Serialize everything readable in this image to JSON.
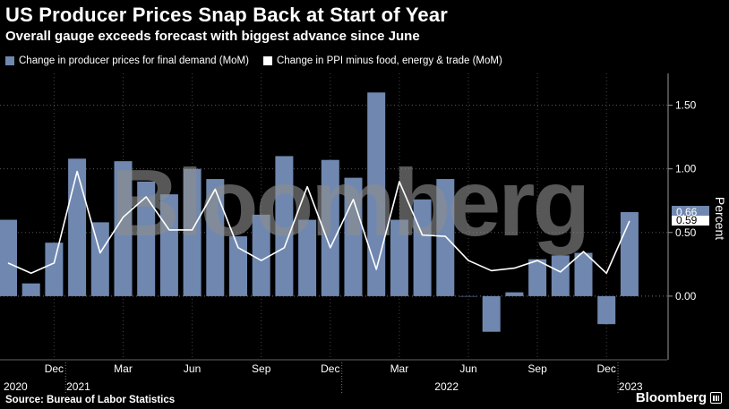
{
  "header": {
    "title": "US Producer Prices Snap Back at Start of Year",
    "subtitle": "Overall gauge exceeds forecast with biggest advance since June"
  },
  "footer": {
    "source": "Source: Bureau of Labor Statistics",
    "brand": "Bloomberg"
  },
  "watermark": "Bloomberg",
  "colors": {
    "bar": "#7088b0",
    "line": "#ffffff",
    "background": "#000000",
    "grid": "#555555",
    "label_box_bar": "#7088b0",
    "label_box_line": "#ffffff"
  },
  "chart_data": {
    "type": "bar",
    "title": "US Producer Prices Snap Back at Start of Year",
    "subtitle": "Overall gauge exceeds forecast with biggest advance since June",
    "ylabel": "Percent",
    "ylim": [
      -0.5,
      1.75
    ],
    "yticks": [
      0.0,
      0.5,
      1.0,
      1.5
    ],
    "ytick_labels": [
      "0.00",
      "0.50",
      "1.00",
      "1.50"
    ],
    "y_axis_position": "right",
    "grid": "horizontal dotted",
    "legend_position": "top-left",
    "x": [
      "2020-10",
      "2020-11",
      "2020-12",
      "2021-01",
      "2021-02",
      "2021-03",
      "2021-04",
      "2021-05",
      "2021-06",
      "2021-07",
      "2021-08",
      "2021-09",
      "2021-10",
      "2021-11",
      "2021-12",
      "2022-01",
      "2022-02",
      "2022-03",
      "2022-04",
      "2022-05",
      "2022-06",
      "2022-07",
      "2022-08",
      "2022-09",
      "2022-10",
      "2022-11",
      "2022-12",
      "2023-01"
    ],
    "xtick_labels": [
      {
        "x": "2020-12",
        "month": "Dec",
        "year": ""
      },
      {
        "x": "2021-03",
        "month": "Mar",
        "year": ""
      },
      {
        "x": "2021-06",
        "month": "Jun",
        "year": ""
      },
      {
        "x": "2021-09",
        "month": "Sep",
        "year": ""
      },
      {
        "x": "2021-12",
        "month": "Dec",
        "year": ""
      },
      {
        "x": "2022-03",
        "month": "Mar",
        "year": ""
      },
      {
        "x": "2022-06",
        "month": "Jun",
        "year": ""
      },
      {
        "x": "2022-09",
        "month": "Sep",
        "year": ""
      },
      {
        "x": "2022-12",
        "month": "Dec",
        "year": ""
      }
    ],
    "year_labels": [
      {
        "x": "2020-10",
        "label": "2020"
      },
      {
        "x": "2021-01",
        "label": "2021"
      },
      {
        "x": "2022-05",
        "label": "2022"
      },
      {
        "x": "2023-01",
        "label": "2023"
      }
    ],
    "series": [
      {
        "name": "Change in producer prices for final demand (MoM)",
        "type": "bar",
        "values": [
          0.6,
          0.1,
          0.42,
          1.08,
          0.58,
          1.06,
          0.9,
          0.8,
          1.0,
          0.92,
          0.47,
          0.64,
          1.1,
          0.6,
          1.07,
          0.93,
          1.6,
          0.6,
          0.76,
          0.92,
          0.0,
          -0.28,
          0.03,
          0.29,
          0.32,
          0.34,
          -0.22,
          0.66
        ]
      },
      {
        "name": "Change in PPI minus food, energy & trade (MoM)",
        "type": "line",
        "values": [
          0.26,
          0.18,
          0.26,
          0.98,
          0.34,
          0.62,
          0.78,
          0.52,
          0.52,
          0.84,
          0.38,
          0.28,
          0.38,
          0.86,
          0.38,
          0.76,
          0.21,
          0.9,
          0.48,
          0.47,
          0.28,
          0.2,
          0.22,
          0.28,
          0.19,
          0.35,
          0.18,
          0.59
        ]
      }
    ],
    "last_value_labels": [
      "0.66",
      "0.59"
    ]
  }
}
